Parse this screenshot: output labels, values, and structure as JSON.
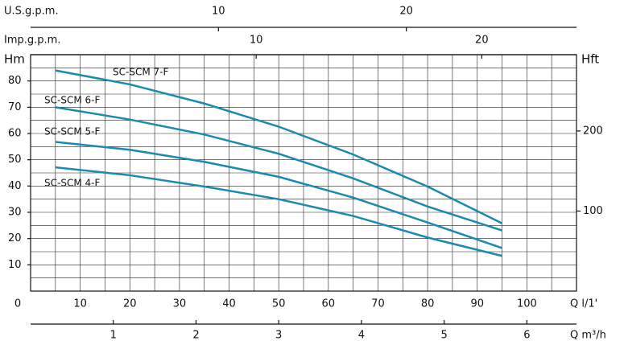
{
  "chart_data": {
    "type": "line",
    "x": [
      5,
      20,
      35,
      50,
      65,
      80,
      95
    ],
    "series": [
      {
        "name": "SC-SCM 7-F",
        "color": "#1a8ab0",
        "values": [
          84,
          78.7,
          71.4,
          62.6,
          52,
          39.8,
          25.8
        ]
      },
      {
        "name": "SC-SCM 6-F",
        "color": "#1a8ab0",
        "values": [
          70,
          65.3,
          59.6,
          52.3,
          42.9,
          32.2,
          23.1
        ]
      },
      {
        "name": "SC-SCM 5-F",
        "color": "#1a8ab0",
        "values": [
          56.8,
          53.8,
          49.2,
          43.5,
          35.6,
          26.1,
          16.4
        ]
      },
      {
        "name": "SC-SCM 4-F",
        "color": "#1a8ab0",
        "values": [
          47.1,
          44.1,
          39.8,
          35,
          28.6,
          20.4,
          13.4
        ]
      }
    ],
    "xlabel": "Q  l/1'",
    "xlim": [
      0,
      110
    ],
    "xticks": [
      0,
      10,
      20,
      30,
      40,
      50,
      60,
      70,
      80,
      90,
      100
    ],
    "ylabel": "Hm",
    "ylim": [
      0,
      90
    ],
    "yticks": [
      10,
      20,
      30,
      40,
      50,
      60,
      70,
      80
    ],
    "y2label": "Hft",
    "y2lim": [
      0,
      295.3
    ],
    "y2ticks": [
      100,
      200
    ],
    "grid": true,
    "xgrid_step": 5,
    "ygrid_step": 5,
    "extra_x_axes": [
      {
        "label": "U.S.g.p.m.",
        "position": "top",
        "xlim": [
          0,
          29.06
        ],
        "xticks": [
          10,
          20
        ]
      },
      {
        "label": "Imp.g.p.m.",
        "position": "top",
        "xlim": [
          0,
          24.2
        ],
        "xticks": [
          10,
          20
        ]
      },
      {
        "label": "Q  m³/h",
        "position": "bottom",
        "xlim": [
          0,
          6.6
        ],
        "xticks": [
          1,
          2,
          3,
          4,
          5,
          6
        ]
      }
    ]
  }
}
